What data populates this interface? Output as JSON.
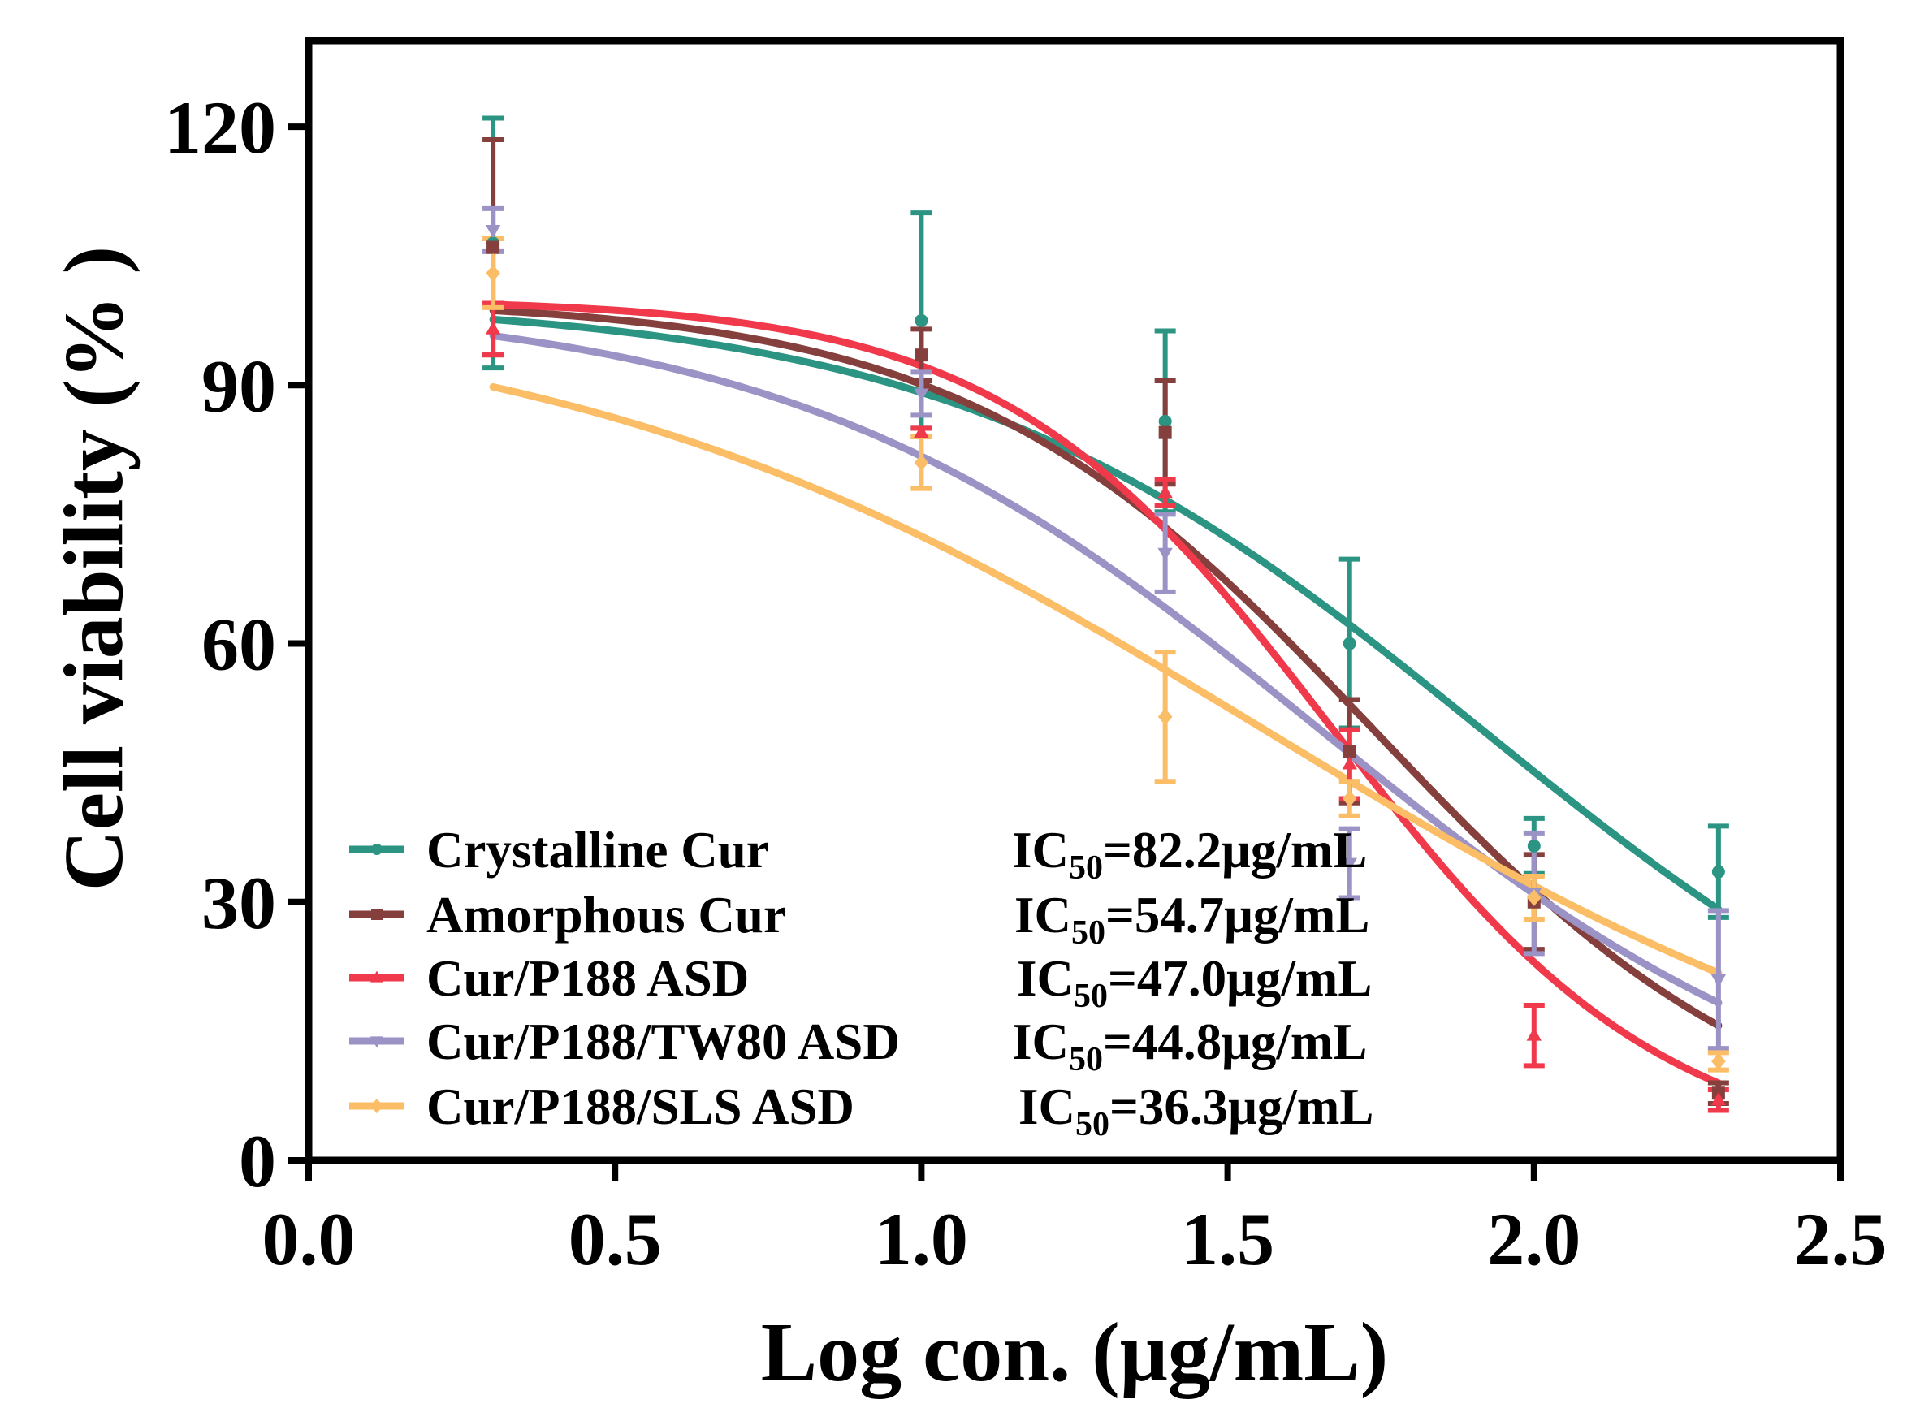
{
  "chart_data": {
    "type": "line",
    "xlabel": "Log  con. (μg/mL)",
    "ylabel": "Cell viability (% )",
    "xlim": [
      0,
      2.5
    ],
    "ylim": [
      0,
      130
    ],
    "x_ticks": [
      0,
      0.5,
      1,
      1.5,
      2,
      2.5
    ],
    "x_tick_labels": [
      "0.0",
      "0.5",
      "1.0",
      "1.5",
      "2.0",
      "2.5"
    ],
    "y_ticks": [
      0,
      30,
      60,
      90,
      120
    ],
    "y_tick_labels": [
      "0",
      "30",
      "60",
      "90",
      "120"
    ],
    "grid": false,
    "legend_position": "bottom-left",
    "series": [
      {
        "name": "Crystalline Cur",
        "ic50_prefix": "IC",
        "ic50_sub": "50",
        "ic50_value": "=82.2μg/mL",
        "color": "#2b9483",
        "marker": "circle",
        "x": [
          0.301,
          1.0,
          1.398,
          1.699,
          2.0,
          2.301
        ],
        "values": [
          106.5,
          97.5,
          85.8,
          60.0,
          36.5,
          33.5
        ],
        "errors": [
          14.5,
          12.5,
          10.5,
          9.8,
          3.2,
          5.3
        ],
        "fit": {
          "top": 100,
          "bottom": 0,
          "log_ic50": 1.915,
          "hill": 1.0
        }
      },
      {
        "name": "Amorphous  Cur",
        "ic50_prefix": "IC",
        "ic50_sub": "50",
        "ic50_value": "=54.7μg/mL",
        "color": "#853f3c",
        "marker": "square",
        "x": [
          0.301,
          1.0,
          1.398,
          1.699,
          2.0,
          2.301
        ],
        "values": [
          106.0,
          93.5,
          84.5,
          47.5,
          30.0,
          7.8
        ],
        "errors": [
          12.5,
          3.0,
          6.0,
          6.0,
          5.5,
          1.2
        ],
        "fit": {
          "top": 100,
          "bottom": 0,
          "log_ic50": 1.738,
          "hill": 1.3
        }
      },
      {
        "name": "Cur/P188 ASD",
        "ic50_prefix": "IC",
        "ic50_sub": "50",
        "ic50_value": "=47.0μg/mL",
        "color": "#f03a4c",
        "marker": "triangle",
        "x": [
          0.301,
          1.0,
          1.398,
          1.699,
          2.0,
          2.301
        ],
        "values": [
          96.5,
          84.5,
          77.5,
          46.0,
          14.5,
          7.0
        ],
        "errors": [
          3.0,
          0.5,
          1.5,
          4.0,
          3.5,
          1.2
        ],
        "fit": {
          "top": 100,
          "bottom": 0,
          "log_ic50": 1.672,
          "hill": 1.6
        }
      },
      {
        "name": "Cur/P188/TW80 ASD",
        "ic50_prefix": "IC",
        "ic50_sub": "50",
        "ic50_value": "=44.8μg/mL",
        "color": "#9b93c5",
        "marker": "inverted-triangle",
        "x": [
          0.301,
          1.0,
          1.398,
          1.699,
          2.0,
          2.301
        ],
        "values": [
          108.0,
          89.0,
          70.5,
          34.5,
          31.0,
          21.0
        ],
        "errors": [
          2.5,
          2.5,
          4.5,
          4.0,
          7.0,
          8.0
        ],
        "fit": {
          "top": 100,
          "bottom": 0,
          "log_ic50": 1.651,
          "hill": 1.0
        }
      },
      {
        "name": "Cur/P188/SLS ASD",
        "ic50_prefix": "IC",
        "ic50_sub": "50",
        "ic50_value": "=36.3μg/mL",
        "color": "#fbbd66",
        "marker": "diamond",
        "x": [
          0.301,
          1.0,
          1.398,
          1.699,
          2.0,
          2.301
        ],
        "values": [
          103.0,
          81.0,
          51.5,
          42.0,
          30.5,
          11.5
        ],
        "errors": [
          4.0,
          3.0,
          7.5,
          2.0,
          2.5,
          1.0
        ],
        "fit": {
          "top": 100,
          "bottom": 0,
          "log_ic50": 1.56,
          "hill": 0.75
        }
      }
    ]
  }
}
